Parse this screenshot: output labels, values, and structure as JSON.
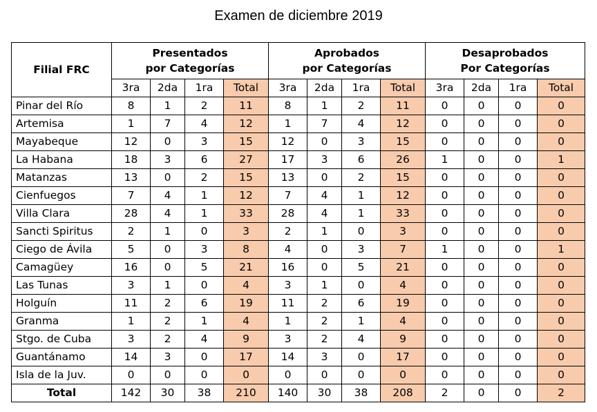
{
  "title": "Examen de diciembre 2019",
  "headers": {
    "filial": "Filial FRC",
    "groups": [
      {
        "line1": "Presentados",
        "line2": "por Categorías"
      },
      {
        "line1": "Aprobados",
        "line2": "por Categorías"
      },
      {
        "line1": "Desaprobados",
        "line2": "Por Categorías"
      }
    ],
    "sub": [
      "3ra",
      "2da",
      "1ra",
      "Total"
    ]
  },
  "rows": [
    {
      "name": "Pinar del Río",
      "values": [
        8,
        1,
        2,
        11,
        8,
        1,
        2,
        11,
        0,
        0,
        0,
        0
      ]
    },
    {
      "name": "Artemisa",
      "values": [
        1,
        7,
        4,
        12,
        1,
        7,
        4,
        12,
        0,
        0,
        0,
        0
      ]
    },
    {
      "name": "Mayabeque",
      "values": [
        12,
        0,
        3,
        15,
        12,
        0,
        3,
        15,
        0,
        0,
        0,
        0
      ]
    },
    {
      "name": "La Habana",
      "values": [
        18,
        3,
        6,
        27,
        17,
        3,
        6,
        26,
        1,
        0,
        0,
        1
      ]
    },
    {
      "name": "Matanzas",
      "values": [
        13,
        0,
        2,
        15,
        13,
        0,
        2,
        15,
        0,
        0,
        0,
        0
      ]
    },
    {
      "name": "Cienfuegos",
      "values": [
        7,
        4,
        1,
        12,
        7,
        4,
        1,
        12,
        0,
        0,
        0,
        0
      ]
    },
    {
      "name": "Villa Clara",
      "values": [
        28,
        4,
        1,
        33,
        28,
        4,
        1,
        33,
        0,
        0,
        0,
        0
      ]
    },
    {
      "name": "Sancti Spiritus",
      "values": [
        2,
        1,
        0,
        3,
        2,
        1,
        0,
        3,
        0,
        0,
        0,
        0
      ]
    },
    {
      "name": "Ciego de Ávila",
      "values": [
        5,
        0,
        3,
        8,
        4,
        0,
        3,
        7,
        1,
        0,
        0,
        1
      ]
    },
    {
      "name": "Camagüey",
      "values": [
        16,
        0,
        5,
        21,
        16,
        0,
        5,
        21,
        0,
        0,
        0,
        0
      ]
    },
    {
      "name": "Las Tunas",
      "values": [
        3,
        1,
        0,
        4,
        3,
        1,
        0,
        4,
        0,
        0,
        0,
        0
      ]
    },
    {
      "name": "Holguín",
      "values": [
        11,
        2,
        6,
        19,
        11,
        2,
        6,
        19,
        0,
        0,
        0,
        0
      ]
    },
    {
      "name": "Granma",
      "values": [
        1,
        2,
        1,
        4,
        1,
        2,
        1,
        4,
        0,
        0,
        0,
        0
      ]
    },
    {
      "name": "Stgo. de Cuba",
      "values": [
        3,
        2,
        4,
        9,
        3,
        2,
        4,
        9,
        0,
        0,
        0,
        0
      ]
    },
    {
      "name": "Guantánamo",
      "values": [
        14,
        3,
        0,
        17,
        14,
        3,
        0,
        17,
        0,
        0,
        0,
        0
      ]
    },
    {
      "name": "Isla de la Juv.",
      "values": [
        0,
        0,
        0,
        0,
        0,
        0,
        0,
        0,
        0,
        0,
        0,
        0
      ]
    }
  ],
  "total": {
    "name": "Total",
    "values": [
      142,
      30,
      38,
      210,
      140,
      30,
      38,
      208,
      2,
      0,
      0,
      2
    ]
  },
  "colors": {
    "total_column_fill": "#f8cbad",
    "border": "#000000"
  }
}
